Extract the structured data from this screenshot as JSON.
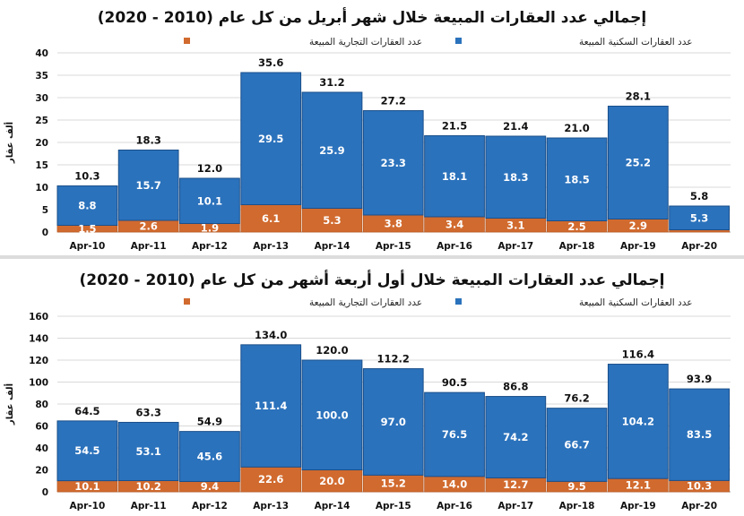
{
  "colors": {
    "residential": "#2b72bc",
    "commercial": "#d16a2e",
    "bar_edge": "#1a4f8a",
    "grid": "#d9d9d9"
  },
  "chart_data": [
    {
      "type": "bar",
      "stacked": true,
      "title": "إجمالي عدد العقارات المبيعة خلال شهر أبريل من كل عام (2010 - 2020)",
      "ylabel": "ألف عقار",
      "xlabel": "",
      "ylim": [
        0,
        40
      ],
      "yticks": [
        0,
        5,
        10,
        15,
        20,
        25,
        30,
        35,
        40
      ],
      "grid": true,
      "legend": "top",
      "categories": [
        "Apr-10",
        "Apr-11",
        "Apr-12",
        "Apr-13",
        "Apr-14",
        "Apr-15",
        "Apr-16",
        "Apr-17",
        "Apr-18",
        "Apr-19",
        "Apr-20"
      ],
      "series": [
        {
          "name": "عدد العقارات التجارية المبيعة",
          "values": [
            1.5,
            2.6,
            1.9,
            6.1,
            5.3,
            3.8,
            3.4,
            3.1,
            2.5,
            2.9,
            0.5
          ],
          "labels": [
            "1.5",
            "2.6",
            "1.9",
            "6.1",
            "5.3",
            "3.8",
            "3.4",
            "3.1",
            "2.5",
            "2.9",
            ""
          ]
        },
        {
          "name": "عدد العقارات السكنية المبيعة",
          "values": [
            8.8,
            15.7,
            10.1,
            29.5,
            25.9,
            23.3,
            18.1,
            18.3,
            18.5,
            25.2,
            5.3
          ],
          "labels": [
            "8.8",
            "15.7",
            "10.1",
            "29.5",
            "25.9",
            "23.3",
            "18.1",
            "18.3",
            "18.5",
            "25.2",
            "5.3"
          ]
        }
      ],
      "totals": [
        "10.3",
        "18.3",
        "12.0",
        "35.6",
        "31.2",
        "27.2",
        "21.5",
        "21.4",
        "21.0",
        "28.1",
        "5.8"
      ]
    },
    {
      "type": "bar",
      "stacked": true,
      "title": "إجمالي عدد العقارات المبيعة خلال أول أربعة أشهر من كل عام (2010 - 2020)",
      "ylabel": "ألف عقار",
      "xlabel": "",
      "ylim": [
        0,
        160
      ],
      "yticks": [
        0,
        20,
        40,
        60,
        80,
        100,
        120,
        140,
        160
      ],
      "grid": true,
      "legend": "top",
      "categories": [
        "Apr-10",
        "Apr-11",
        "Apr-12",
        "Apr-13",
        "Apr-14",
        "Apr-15",
        "Apr-16",
        "Apr-17",
        "Apr-18",
        "Apr-19",
        "Apr-20"
      ],
      "series": [
        {
          "name": "عدد العقارات التجارية المبيعة",
          "values": [
            10.1,
            10.2,
            9.4,
            22.6,
            20.0,
            15.2,
            14.0,
            12.7,
            9.5,
            12.1,
            10.3
          ],
          "labels": [
            "10.1",
            "10.2",
            "9.4",
            "22.6",
            "20.0",
            "15.2",
            "14.0",
            "12.7",
            "9.5",
            "12.1",
            "10.3"
          ]
        },
        {
          "name": "عدد العقارات السكنية المبيعة",
          "values": [
            54.5,
            53.1,
            45.6,
            111.4,
            100.0,
            97.0,
            76.5,
            74.2,
            66.7,
            104.2,
            83.5
          ],
          "labels": [
            "54.5",
            "53.1",
            "45.6",
            "111.4",
            "100.0",
            "97.0",
            "76.5",
            "74.2",
            "66.7",
            "104.2",
            "83.5"
          ]
        }
      ],
      "totals": [
        "64.5",
        "63.3",
        "54.9",
        "134.0",
        "120.0",
        "112.2",
        "90.5",
        "86.8",
        "76.2",
        "116.4",
        "93.9"
      ]
    }
  ]
}
